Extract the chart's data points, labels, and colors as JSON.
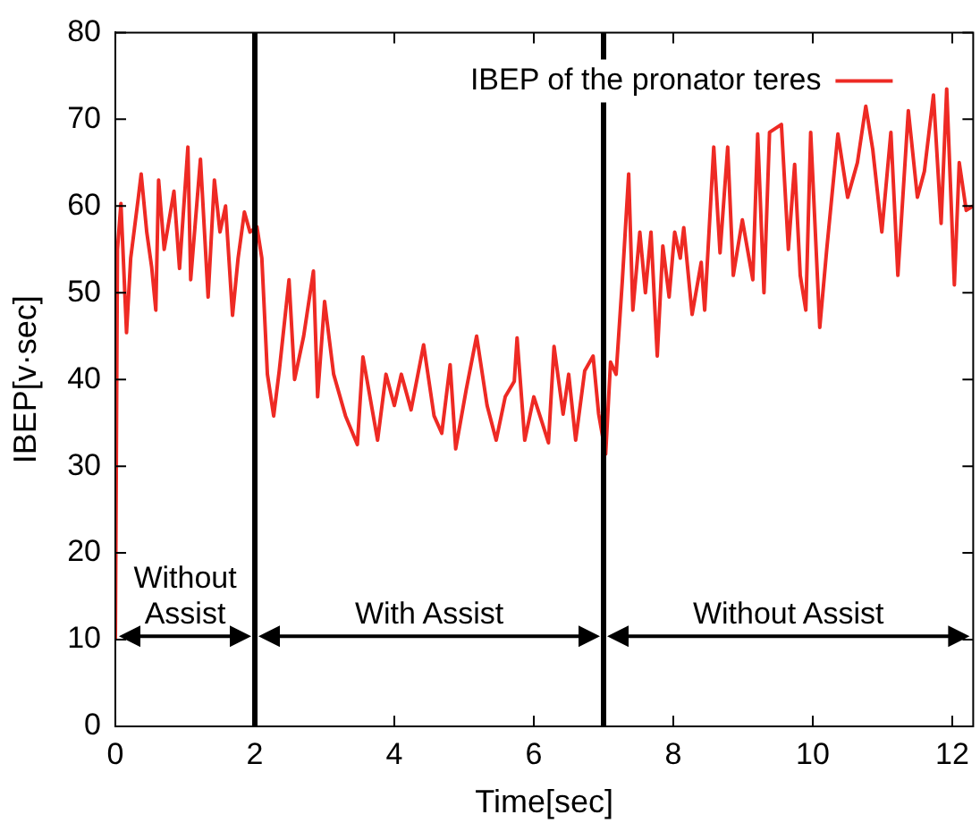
{
  "chart_data": {
    "type": "line",
    "xlabel": "Time[sec]",
    "ylabel": "IBEP[v·sec]",
    "xlim": [
      0,
      12.3
    ],
    "xticks": [
      0,
      2,
      4,
      6,
      8,
      10,
      12
    ],
    "ylim": [
      0,
      80
    ],
    "yticks": [
      0,
      10,
      20,
      30,
      40,
      50,
      60,
      70,
      80
    ],
    "grid": false,
    "legend": "top right",
    "marker": "none",
    "line_style": "solid",
    "series": [
      {
        "name": "IBEP of the pronator teres",
        "color": "#ee2a24",
        "x": [
          0,
          0.03,
          0.08,
          0.16,
          0.22,
          0.33,
          0.37,
          0.45,
          0.52,
          0.58,
          0.62,
          0.7,
          0.84,
          0.92,
          1.04,
          1.08,
          1.22,
          1.33,
          1.42,
          1.5,
          1.58,
          1.68,
          1.76,
          1.85,
          1.93,
          2.03,
          2.1,
          2.18,
          2.27,
          2.35,
          2.49,
          2.57,
          2.7,
          2.84,
          2.9,
          3.0,
          3.13,
          3.3,
          3.47,
          3.55,
          3.76,
          3.88,
          4.0,
          4.1,
          4.24,
          4.42,
          4.57,
          4.68,
          4.8,
          4.88,
          5.03,
          5.18,
          5.33,
          5.46,
          5.59,
          5.72,
          5.76,
          5.87,
          6.0,
          6.12,
          6.21,
          6.29,
          6.42,
          6.5,
          6.6,
          6.73,
          6.85,
          6.93,
          7.03,
          7.1,
          7.18,
          7.27,
          7.36,
          7.42,
          7.52,
          7.6,
          7.68,
          7.77,
          7.85,
          7.94,
          8.02,
          8.1,
          8.15,
          8.27,
          8.4,
          8.45,
          8.58,
          8.67,
          8.78,
          8.86,
          8.99,
          9.14,
          9.21,
          9.3,
          9.38,
          9.55,
          9.65,
          9.74,
          9.82,
          9.9,
          9.97,
          10.1,
          10.2,
          10.36,
          10.5,
          10.64,
          10.76,
          10.86,
          10.99,
          11.12,
          11.22,
          11.37,
          11.5,
          11.6,
          11.73,
          11.84,
          11.92,
          12.03,
          12.1,
          12.2,
          12.3
        ],
        "values": [
          10,
          55,
          60.3,
          45.4,
          54,
          61,
          63.7,
          57,
          53,
          48,
          63,
          55,
          61.7,
          52.8,
          66.8,
          51.5,
          65.4,
          49.5,
          63,
          57,
          60,
          47.4,
          54,
          59.3,
          57,
          57.6,
          54,
          40.6,
          35.8,
          41,
          51.5,
          40,
          45,
          52.5,
          38,
          49,
          40.6,
          35.8,
          32.5,
          42.6,
          33,
          40.6,
          37,
          40.6,
          36.5,
          44,
          35.8,
          33.8,
          41.7,
          32,
          38.8,
          45,
          37,
          33,
          38,
          39.8,
          44.8,
          33,
          38,
          35,
          32.7,
          43.8,
          36,
          40.6,
          33,
          41,
          42.7,
          36,
          31.4,
          42,
          40.6,
          51.5,
          63.7,
          48,
          57,
          50,
          57,
          42.7,
          55.4,
          49.5,
          57,
          54,
          57.5,
          47.5,
          53.5,
          48,
          66.8,
          54.6,
          66.8,
          52,
          58.4,
          51.5,
          68.3,
          50,
          68.5,
          69.4,
          55,
          64.8,
          52,
          48,
          68.5,
          46,
          55,
          68.3,
          61,
          65,
          71.5,
          66.5,
          57,
          68.5,
          52,
          71,
          61,
          64,
          72.8,
          58,
          73.5,
          50.9,
          65,
          59.5,
          60
        ]
      }
    ],
    "ref_lines": [
      {
        "axis": "x",
        "value": 2,
        "color": "#000000"
      },
      {
        "axis": "x",
        "value": 7,
        "color": "#000000"
      }
    ],
    "annotations": [
      "Without Assist",
      "With Assist",
      "Without Assist"
    ]
  }
}
